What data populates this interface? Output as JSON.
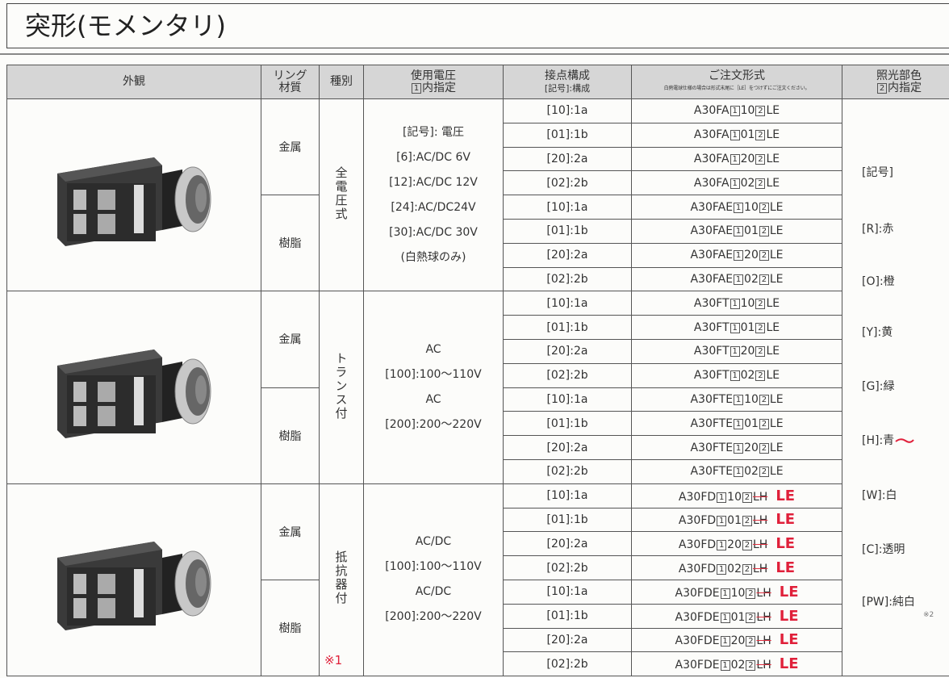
{
  "title": "突形(モメンタリ)",
  "header": {
    "appearance": [
      "外観"
    ],
    "ring": [
      "リング",
      "材質"
    ],
    "type": [
      "種別"
    ],
    "voltage": [
      {
        "text": "使用電圧"
      },
      {
        "box": "1",
        "text": "内指定"
      }
    ],
    "contact": [
      "接点構成",
      "[記号]:構成"
    ],
    "order": [
      "ご注文形式",
      "白熱電球仕様の場合は形式末尾に［LE］をつけずにご注文ください。"
    ],
    "color": [
      {
        "text": "照光部色"
      },
      {
        "box": "2",
        "text": "内指定"
      }
    ]
  },
  "groups": [
    {
      "type": "全電圧式",
      "voltage": [
        "[記号]: 電圧",
        "[6]:AC/DC 6V",
        "[12]:AC/DC 12V",
        "[24]:AC/DC24V",
        "[30]:AC/DC 30V",
        "(白熱球のみ)"
      ],
      "materials": [
        {
          "name": "金属",
          "rows": [
            {
              "contact": "[10]:1a",
              "code": {
                "prefix": "A30FA",
                "box1": "1",
                "mid": "10",
                "box2": "2",
                "suffix": "LE"
              }
            },
            {
              "contact": "[01]:1b",
              "code": {
                "prefix": "A30FA",
                "box1": "1",
                "mid": "01",
                "box2": "2",
                "suffix": "LE"
              }
            },
            {
              "contact": "[20]:2a",
              "code": {
                "prefix": "A30FA",
                "box1": "1",
                "mid": "20",
                "box2": "2",
                "suffix": "LE"
              }
            },
            {
              "contact": "[02]:2b",
              "code": {
                "prefix": "A30FA",
                "box1": "1",
                "mid": "02",
                "box2": "2",
                "suffix": "LE"
              }
            }
          ]
        },
        {
          "name": "樹脂",
          "rows": [
            {
              "contact": "[10]:1a",
              "code": {
                "prefix": "A30FAE",
                "box1": "1",
                "mid": "10",
                "box2": "2",
                "suffix": "LE"
              }
            },
            {
              "contact": "[01]:1b",
              "code": {
                "prefix": "A30FAE",
                "box1": "1",
                "mid": "01",
                "box2": "2",
                "suffix": "LE"
              }
            },
            {
              "contact": "[20]:2a",
              "code": {
                "prefix": "A30FAE",
                "box1": "1",
                "mid": "20",
                "box2": "2",
                "suffix": "LE"
              }
            },
            {
              "contact": "[02]:2b",
              "code": {
                "prefix": "A30FAE",
                "box1": "1",
                "mid": "02",
                "box2": "2",
                "suffix": "LE"
              }
            }
          ]
        }
      ]
    },
    {
      "type": "トランス付",
      "voltage": [
        "AC",
        "[100]:100～110V",
        "AC",
        "[200]:200～220V"
      ],
      "materials": [
        {
          "name": "金属",
          "rows": [
            {
              "contact": "[10]:1a",
              "code": {
                "prefix": "A30FT",
                "box1": "1",
                "mid": "10",
                "box2": "2",
                "suffix": "LE"
              }
            },
            {
              "contact": "[01]:1b",
              "code": {
                "prefix": "A30FT",
                "box1": "1",
                "mid": "01",
                "box2": "2",
                "suffix": "LE"
              }
            },
            {
              "contact": "[20]:2a",
              "code": {
                "prefix": "A30FT",
                "box1": "1",
                "mid": "20",
                "box2": "2",
                "suffix": "LE"
              }
            },
            {
              "contact": "[02]:2b",
              "code": {
                "prefix": "A30FT",
                "box1": "1",
                "mid": "02",
                "box2": "2",
                "suffix": "LE"
              }
            }
          ]
        },
        {
          "name": "樹脂",
          "rows": [
            {
              "contact": "[10]:1a",
              "code": {
                "prefix": "A30FTE",
                "box1": "1",
                "mid": "10",
                "box2": "2",
                "suffix": "LE"
              }
            },
            {
              "contact": "[01]:1b",
              "code": {
                "prefix": "A30FTE",
                "box1": "1",
                "mid": "01",
                "box2": "2",
                "suffix": "LE"
              }
            },
            {
              "contact": "[20]:2a",
              "code": {
                "prefix": "A30FTE",
                "box1": "1",
                "mid": "20",
                "box2": "2",
                "suffix": "LE"
              }
            },
            {
              "contact": "[02]:2b",
              "code": {
                "prefix": "A30FTE",
                "box1": "1",
                "mid": "02",
                "box2": "2",
                "suffix": "LE"
              }
            }
          ]
        }
      ]
    },
    {
      "type": "抵抗器付",
      "annotation": "※1",
      "voltage": [
        "AC/DC",
        "[100]:100～110V",
        "AC/DC",
        "[200]:200～220V"
      ],
      "materials": [
        {
          "name": "金属",
          "rows": [
            {
              "contact": "[10]:1a",
              "code": {
                "prefix": "A30FD",
                "box1": "1",
                "mid": "10",
                "box2": "2",
                "suffix": "LH",
                "correction": "LE"
              }
            },
            {
              "contact": "[01]:1b",
              "code": {
                "prefix": "A30FD",
                "box1": "1",
                "mid": "01",
                "box2": "2",
                "suffix": "LH",
                "correction": "LE"
              }
            },
            {
              "contact": "[20]:2a",
              "code": {
                "prefix": "A30FD",
                "box1": "1",
                "mid": "20",
                "box2": "2",
                "suffix": "LH",
                "correction": "LE"
              }
            },
            {
              "contact": "[02]:2b",
              "code": {
                "prefix": "A30FD",
                "box1": "1",
                "mid": "02",
                "box2": "2",
                "suffix": "LH",
                "correction": "LE"
              }
            }
          ]
        },
        {
          "name": "樹脂",
          "rows": [
            {
              "contact": "[10]:1a",
              "code": {
                "prefix": "A30FDE",
                "box1": "1",
                "mid": "10",
                "box2": "2",
                "suffix": "LH",
                "correction": "LE"
              }
            },
            {
              "contact": "[01]:1b",
              "code": {
                "prefix": "A30FDE",
                "box1": "1",
                "mid": "01",
                "box2": "2",
                "suffix": "LH",
                "correction": "LE"
              }
            },
            {
              "contact": "[20]:2a",
              "code": {
                "prefix": "A30FDE",
                "box1": "1",
                "mid": "20",
                "box2": "2",
                "suffix": "LH",
                "correction": "LE"
              }
            },
            {
              "contact": "[02]:2b",
              "code": {
                "prefix": "A30FDE",
                "box1": "1",
                "mid": "02",
                "box2": "2",
                "suffix": "LH",
                "correction": "LE"
              }
            }
          ]
        }
      ]
    }
  ],
  "colors": {
    "items": [
      "[記号]",
      "[R]:赤",
      "[O]:橙",
      "[Y]:黄",
      "[G]:緑",
      "[H]:青",
      "[W]:白",
      "[C]:透明",
      "[PW]:純白"
    ],
    "note": "※2"
  }
}
